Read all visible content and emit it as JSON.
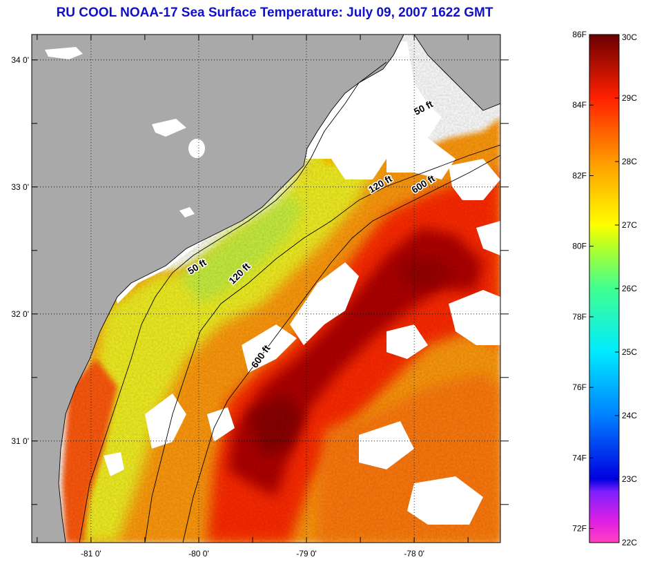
{
  "title": "RU COOL  NOAA-17  Sea Surface Temperature:  July 09, 2007 1622 GMT",
  "map": {
    "lat_labels": [
      {
        "text": "34 0'",
        "lat": 34.0
      },
      {
        "text": "33 0'",
        "lat": 33.0
      },
      {
        "text": "32 0'",
        "lat": 32.0
      },
      {
        "text": "31 0'",
        "lat": 31.0
      }
    ],
    "lon_labels": [
      {
        "text": "-81 0'",
        "lon": -81.0
      },
      {
        "text": "-80 0'",
        "lon": -80.0
      },
      {
        "text": "-79 0'",
        "lon": -79.0
      },
      {
        "text": "-78 0'",
        "lon": -78.0
      }
    ],
    "extent": {
      "lon_min": -81.55,
      "lon_max": -77.2,
      "lat_min": 30.2,
      "lat_max": 34.2
    },
    "isobaths": [
      {
        "label": "50 ft",
        "lon": -80.0,
        "lat": 32.35
      },
      {
        "label": "50 ft",
        "lon": -77.9,
        "lat": 33.6
      },
      {
        "label": "120 ft",
        "lon": -79.6,
        "lat": 32.3
      },
      {
        "label": "120 ft",
        "lon": -78.3,
        "lat": 33.0
      },
      {
        "label": "600 ft",
        "lon": -79.4,
        "lat": 31.65
      },
      {
        "label": "600 ft",
        "lon": -77.9,
        "lat": 33.0
      }
    ],
    "colors": {
      "land": "#a9a9a9",
      "no_data": "#ffffff",
      "warm_core": "#8b0000"
    }
  },
  "colorbar": {
    "fahrenheit": [
      "86F",
      "84F",
      "82F",
      "80F",
      "78F",
      "76F",
      "74F",
      "72F"
    ],
    "celsius": [
      "30C",
      "29C",
      "28C",
      "27C",
      "26C",
      "25C",
      "24C",
      "23C",
      "22C"
    ],
    "stops": [
      "#ff40c0",
      "#c020ff",
      "#0000e0",
      "#0080ff",
      "#00e0ff",
      "#40ff80",
      "#ffff00",
      "#ffa000",
      "#ff3000",
      "#d00000",
      "#700000"
    ]
  }
}
